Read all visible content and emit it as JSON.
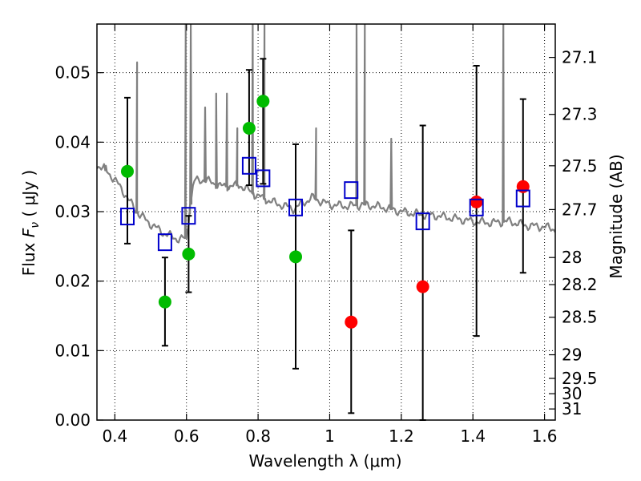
{
  "chart_data": {
    "type": "scatter",
    "xlabel": "Wavelength  λ (μm)",
    "ylabel": "Flux  Fν  ( μJy )",
    "ylabel_right": "Magnitude (AB)",
    "xlim": [
      0.35,
      1.63
    ],
    "ylim": [
      0.0,
      0.057
    ],
    "grid": true,
    "x_ticks": [
      0.4,
      0.6,
      0.8,
      1.0,
      1.2,
      1.4,
      1.6
    ],
    "x_tick_labels": [
      "0.4",
      "0.6",
      "0.8",
      "1",
      "1.2",
      "1.4",
      "1.6"
    ],
    "y_ticks": [
      0.0,
      0.01,
      0.02,
      0.03,
      0.04,
      0.05
    ],
    "y_tick_labels": [
      "0.00",
      "0.01",
      "0.02",
      "0.03",
      "0.04",
      "0.05"
    ],
    "right_ticks": [
      {
        "label": "27.1",
        "flux": 0.0522
      },
      {
        "label": "27.3",
        "flux": 0.044
      },
      {
        "label": "27.5",
        "flux": 0.0366
      },
      {
        "label": "27.7",
        "flux": 0.0303
      },
      {
        "label": "28",
        "flux": 0.0234
      },
      {
        "label": "28.2",
        "flux": 0.0195
      },
      {
        "label": "28.5",
        "flux": 0.0148
      },
      {
        "label": "29",
        "flux": 0.0094
      },
      {
        "label": "29.5",
        "flux": 0.006
      },
      {
        "label": "30",
        "flux": 0.0038
      },
      {
        "label": "31",
        "flux": 0.0016
      }
    ],
    "series": [
      {
        "name": "observed (green)",
        "color": "#00bb00",
        "marker": "circle",
        "points": [
          {
            "x": 0.435,
            "y": 0.0358
          },
          {
            "x": 0.54,
            "y": 0.017
          },
          {
            "x": 0.606,
            "y": 0.0239
          },
          {
            "x": 0.775,
            "y": 0.042
          },
          {
            "x": 0.814,
            "y": 0.0459
          },
          {
            "x": 0.905,
            "y": 0.0235
          }
        ]
      },
      {
        "name": "observed (red)",
        "color": "#ff0000",
        "marker": "circle",
        "points": [
          {
            "x": 1.06,
            "y": 0.0141
          },
          {
            "x": 1.26,
            "y": 0.0192
          },
          {
            "x": 1.41,
            "y": 0.0314
          },
          {
            "x": 1.54,
            "y": 0.0336
          }
        ]
      },
      {
        "name": "model photometry",
        "color": "#0000cc",
        "marker": "open-square",
        "points": [
          {
            "x": 0.435,
            "y": 0.0293
          },
          {
            "x": 0.54,
            "y": 0.0256
          },
          {
            "x": 0.606,
            "y": 0.0294
          },
          {
            "x": 0.775,
            "y": 0.0366
          },
          {
            "x": 0.814,
            "y": 0.0348
          },
          {
            "x": 0.905,
            "y": 0.0306
          },
          {
            "x": 1.06,
            "y": 0.0331
          },
          {
            "x": 1.26,
            "y": 0.0286
          },
          {
            "x": 1.41,
            "y": 0.0306
          },
          {
            "x": 1.54,
            "y": 0.0319
          }
        ]
      }
    ],
    "error_bars": [
      {
        "x": 0.435,
        "low": 0.0254,
        "high": 0.0464
      },
      {
        "x": 0.54,
        "low": 0.0107,
        "high": 0.0234
      },
      {
        "x": 0.606,
        "low": 0.0184,
        "high": 0.0294
      },
      {
        "x": 0.775,
        "low": 0.0338,
        "high": 0.0504
      },
      {
        "x": 0.814,
        "low": 0.034,
        "high": 0.052
      },
      {
        "x": 0.905,
        "low": 0.0074,
        "high": 0.0397
      },
      {
        "x": 1.06,
        "low": 0.001,
        "high": 0.0273
      },
      {
        "x": 1.26,
        "low": 0.0,
        "high": 0.0424
      },
      {
        "x": 1.41,
        "low": 0.0121,
        "high": 0.051
      },
      {
        "x": 1.54,
        "low": 0.0212,
        "high": 0.0462
      }
    ],
    "spectrum": {
      "name": "model SED",
      "color": "#808080",
      "continuum": [
        [
          0.35,
          0.0367
        ],
        [
          0.37,
          0.0362
        ],
        [
          0.4,
          0.0346
        ],
        [
          0.43,
          0.0324
        ],
        [
          0.46,
          0.03
        ],
        [
          0.5,
          0.0282
        ],
        [
          0.54,
          0.0268
        ],
        [
          0.58,
          0.026
        ],
        [
          0.6,
          0.0262
        ],
        [
          0.62,
          0.0344
        ],
        [
          0.65,
          0.0346
        ],
        [
          0.7,
          0.0336
        ],
        [
          0.75,
          0.0338
        ],
        [
          0.8,
          0.0322
        ],
        [
          0.85,
          0.0312
        ],
        [
          0.9,
          0.0304
        ],
        [
          0.95,
          0.032
        ],
        [
          1.0,
          0.031
        ],
        [
          1.05,
          0.0308
        ],
        [
          1.1,
          0.031
        ],
        [
          1.15,
          0.0306
        ],
        [
          1.2,
          0.03
        ],
        [
          1.25,
          0.0296
        ],
        [
          1.3,
          0.0294
        ],
        [
          1.35,
          0.029
        ],
        [
          1.4,
          0.0286
        ],
        [
          1.45,
          0.0284
        ],
        [
          1.5,
          0.0286
        ],
        [
          1.55,
          0.028
        ],
        [
          1.6,
          0.0278
        ],
        [
          1.63,
          0.0275
        ]
      ],
      "lines": [
        {
          "x": 0.375,
          "peak": 0.0366
        },
        {
          "x": 0.462,
          "peak": 0.0515
        },
        {
          "x": 0.598,
          "peak": 0.057
        },
        {
          "x": 0.612,
          "peak": 0.057
        },
        {
          "x": 0.652,
          "peak": 0.045
        },
        {
          "x": 0.683,
          "peak": 0.047
        },
        {
          "x": 0.713,
          "peak": 0.047
        },
        {
          "x": 0.742,
          "peak": 0.042
        },
        {
          "x": 0.785,
          "peak": 0.057
        },
        {
          "x": 0.818,
          "peak": 0.057
        },
        {
          "x": 0.962,
          "peak": 0.042
        },
        {
          "x": 1.075,
          "peak": 0.057
        },
        {
          "x": 1.098,
          "peak": 0.057
        },
        {
          "x": 1.172,
          "peak": 0.0405
        },
        {
          "x": 1.485,
          "peak": 0.057
        }
      ]
    }
  }
}
